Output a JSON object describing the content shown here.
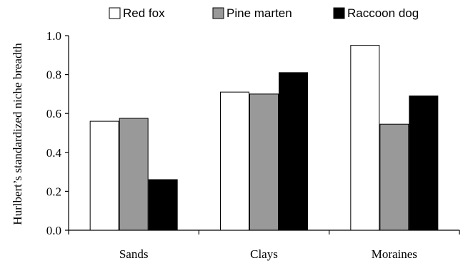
{
  "chart_data": {
    "type": "bar",
    "ylabel": "Hurlbert’s standardized niche breadth",
    "xlabel": "",
    "categories": [
      "Sands",
      "Clays",
      "Moraines"
    ],
    "series": [
      {
        "name": "Red fox",
        "values": [
          0.56,
          0.71,
          0.95
        ],
        "color": "#ffffff"
      },
      {
        "name": "Pine marten",
        "values": [
          0.575,
          0.7,
          0.545
        ],
        "color": "#999999"
      },
      {
        "name": "Raccoon dog",
        "values": [
          0.26,
          0.81,
          0.69
        ],
        "color": "#000000"
      }
    ],
    "ylim": [
      0,
      1.0
    ],
    "yticks": [
      "0.0",
      "0.2",
      "0.4",
      "0.6",
      "0.8",
      "1.0"
    ],
    "grid": false,
    "legend_position": "top"
  }
}
